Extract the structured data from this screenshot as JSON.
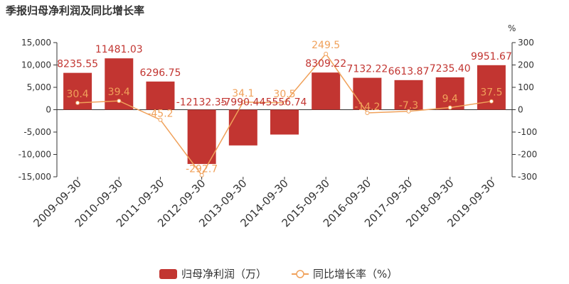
{
  "chart_data": {
    "type": "bar",
    "title": "季报归母净利润及同比增长率",
    "right_axis_unit": "%",
    "categories": [
      "2009-09-30",
      "2010-09-30",
      "2011-09-30",
      "2012-09-30",
      "2013-09-30",
      "2014-09-30",
      "2015-09-30",
      "2016-09-30",
      "2017-09-30",
      "2018-09-30",
      "2019-09-30"
    ],
    "series": [
      {
        "name": "归母净利润（万）",
        "type": "bar",
        "axis": "left",
        "color": "#c23531",
        "values": [
          8235.55,
          11481.03,
          6296.75,
          -12132.35,
          -7990.44,
          -5556.74,
          8309.22,
          7132.22,
          6613.87,
          7235.4,
          9951.67
        ],
        "labels": [
          "8235.55",
          "11481.03",
          "6296.75",
          "-12132.35",
          "-7990.44",
          "-5556.74",
          "8309.22",
          "7132.22",
          "6613.87",
          "7235.40",
          "9951.67"
        ]
      },
      {
        "name": "同比增长率（%）",
        "type": "line",
        "axis": "right",
        "color": "#f0a15a",
        "values": [
          30.4,
          39.4,
          -45.2,
          -292.7,
          34.1,
          30.5,
          249.5,
          -14.2,
          -7.3,
          9.4,
          37.5
        ],
        "labels": [
          "30.4",
          "39.4",
          "-45.2",
          "-292.7",
          "34.1",
          "30.5",
          "249.5",
          "-14.2",
          "-7.3",
          "9.4",
          "37.5"
        ]
      }
    ],
    "y_left": {
      "min": -15000,
      "max": 15000,
      "ticks": [
        15000,
        10000,
        5000,
        0,
        -5000,
        -10000,
        -15000
      ],
      "tick_labels": [
        "15,000",
        "10,000",
        "5,000",
        "0",
        "-5,000",
        "-10,000",
        "-15,000"
      ]
    },
    "y_right": {
      "min": -300,
      "max": 300,
      "ticks": [
        300,
        200,
        100,
        0,
        -100,
        -200,
        -300
      ],
      "tick_labels": [
        "300",
        "200",
        "100",
        "0",
        "-100",
        "-200",
        "-300"
      ]
    },
    "grid": false,
    "legend_position": "bottom-center"
  }
}
